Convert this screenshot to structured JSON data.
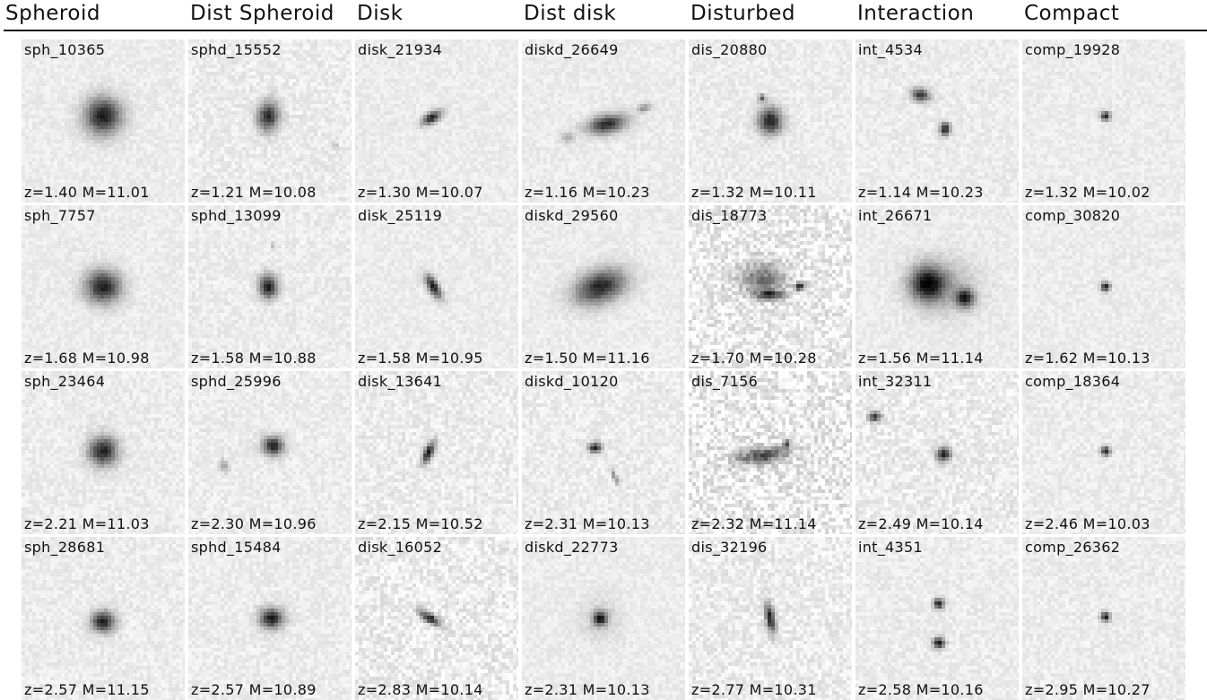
{
  "columns": [
    {
      "title": "Spheroid",
      "cells": [
        {
          "id": "sph_10365",
          "info": "z=1.40 M=11.01",
          "sources": [
            {
              "u": 0.5,
              "v": 0.47,
              "a": 0.28,
              "b": 0.28,
              "ang": 0,
              "peak": 0.92
            }
          ],
          "noise": 0.1
        },
        {
          "id": "sph_7757",
          "info": "z=1.68 M=10.98",
          "sources": [
            {
              "u": 0.5,
              "v": 0.5,
              "a": 0.27,
              "b": 0.25,
              "ang": 0,
              "peak": 0.9
            }
          ],
          "noise": 0.1
        },
        {
          "id": "sph_23464",
          "info": "z=2.21 M=11.03",
          "sources": [
            {
              "u": 0.5,
              "v": 0.49,
              "a": 0.22,
              "b": 0.22,
              "ang": 0,
              "peak": 0.9
            }
          ],
          "noise": 0.12
        },
        {
          "id": "sph_28681",
          "info": "z=2.57 M=11.15",
          "sources": [
            {
              "u": 0.5,
              "v": 0.52,
              "a": 0.18,
              "b": 0.16,
              "ang": -10,
              "peak": 0.92
            }
          ],
          "noise": 0.12
        }
      ]
    },
    {
      "title": "Dist Spheroid",
      "cells": [
        {
          "id": "sphd_15552",
          "info": "z=1.21 M=10.08",
          "sources": [
            {
              "u": 0.49,
              "v": 0.47,
              "a": 0.16,
              "b": 0.22,
              "ang": 10,
              "peak": 0.88
            },
            {
              "u": 0.9,
              "v": 0.65,
              "a": 0.05,
              "b": 0.04,
              "ang": 0,
              "peak": 0.2
            }
          ],
          "noise": 0.14
        },
        {
          "id": "sphd_13099",
          "info": "z=1.58 M=10.88",
          "sources": [
            {
              "u": 0.49,
              "v": 0.5,
              "a": 0.14,
              "b": 0.18,
              "ang": 0,
              "peak": 0.92
            },
            {
              "u": 0.52,
              "v": 0.25,
              "a": 0.04,
              "b": 0.05,
              "ang": 0,
              "peak": 0.25
            }
          ],
          "noise": 0.12
        },
        {
          "id": "sphd_25996",
          "info": "z=2.30 M=10.96",
          "sources": [
            {
              "u": 0.52,
              "v": 0.46,
              "a": 0.16,
              "b": 0.14,
              "ang": 0,
              "peak": 0.92
            },
            {
              "u": 0.22,
              "v": 0.58,
              "a": 0.06,
              "b": 0.1,
              "ang": -20,
              "peak": 0.3
            }
          ],
          "noise": 0.12
        },
        {
          "id": "sphd_15484",
          "info": "z=2.57 M=10.89",
          "sources": [
            {
              "u": 0.51,
              "v": 0.5,
              "a": 0.18,
              "b": 0.16,
              "ang": 0,
              "peak": 0.92
            }
          ],
          "noise": 0.12
        }
      ]
    },
    {
      "title": "Disk",
      "cells": [
        {
          "id": "disk_21934",
          "info": "z=1.30 M=10.07",
          "sources": [
            {
              "u": 0.47,
              "v": 0.48,
              "a": 0.16,
              "b": 0.08,
              "ang": -30,
              "peak": 0.92
            }
          ],
          "noise": 0.1
        },
        {
          "id": "disk_25119",
          "info": "z=1.58 M=10.95",
          "sources": [
            {
              "u": 0.48,
              "v": 0.5,
              "a": 0.2,
              "b": 0.08,
              "ang": 60,
              "peak": 0.92
            }
          ],
          "noise": 0.1
        },
        {
          "id": "disk_13641",
          "info": "z=2.15 M=10.52",
          "sources": [
            {
              "u": 0.45,
              "v": 0.5,
              "a": 0.18,
              "b": 0.07,
              "ang": -65,
              "peak": 0.92
            }
          ],
          "noise": 0.16
        },
        {
          "id": "disk_16052",
          "info": "z=2.83 M=10.14",
          "sources": [
            {
              "u": 0.46,
              "v": 0.5,
              "a": 0.18,
              "b": 0.07,
              "ang": 35,
              "peak": 0.9
            }
          ],
          "noise": 0.22
        }
      ]
    },
    {
      "title": "Dist disk",
      "cells": [
        {
          "id": "diskd_26649",
          "info": "z=1.16 M=10.23",
          "sources": [
            {
              "u": 0.52,
              "v": 0.52,
              "a": 0.3,
              "b": 0.14,
              "ang": -10,
              "peak": 0.85
            },
            {
              "u": 0.75,
              "v": 0.42,
              "a": 0.12,
              "b": 0.06,
              "ang": -15,
              "peak": 0.4
            },
            {
              "u": 0.28,
              "v": 0.6,
              "a": 0.1,
              "b": 0.08,
              "ang": 0,
              "peak": 0.3
            }
          ],
          "noise": 0.1
        },
        {
          "id": "diskd_29560",
          "info": "z=1.50 M=11.16",
          "sources": [
            {
              "u": 0.48,
              "v": 0.5,
              "a": 0.4,
              "b": 0.24,
              "ang": -20,
              "peak": 0.88
            }
          ],
          "noise": 0.1
        },
        {
          "id": "diskd_10120",
          "info": "z=2.31 M=10.13",
          "sources": [
            {
              "u": 0.45,
              "v": 0.47,
              "a": 0.1,
              "b": 0.08,
              "ang": 0,
              "peak": 0.92
            },
            {
              "u": 0.57,
              "v": 0.65,
              "a": 0.14,
              "b": 0.04,
              "ang": 65,
              "peak": 0.4
            }
          ],
          "noise": 0.14
        },
        {
          "id": "diskd_22773",
          "info": "z=2.31 M=10.13",
          "sources": [
            {
              "u": 0.48,
              "v": 0.5,
              "a": 0.1,
              "b": 0.1,
              "ang": 0,
              "peak": 0.92
            },
            {
              "u": 0.48,
              "v": 0.5,
              "a": 0.3,
              "b": 0.3,
              "ang": 0,
              "peak": 0.15
            }
          ],
          "noise": 0.1
        }
      ]
    },
    {
      "title": "Disturbed",
      "cells": [
        {
          "id": "dis_20880",
          "info": "z=1.32 M=10.11",
          "sources": [
            {
              "u": 0.5,
              "v": 0.5,
              "a": 0.18,
              "b": 0.2,
              "ang": 0,
              "peak": 0.92
            },
            {
              "u": 0.45,
              "v": 0.36,
              "a": 0.06,
              "b": 0.06,
              "ang": 0,
              "peak": 0.6
            }
          ],
          "noise": 0.12
        },
        {
          "id": "dis_18773",
          "info": "z=1.70 M=10.28",
          "sources": [
            {
              "u": 0.45,
              "v": 0.45,
              "a": 0.35,
              "b": 0.25,
              "ang": 0,
              "peak": 0.5
            },
            {
              "u": 0.68,
              "v": 0.5,
              "a": 0.08,
              "b": 0.06,
              "ang": 0,
              "peak": 0.85
            },
            {
              "u": 0.5,
              "v": 0.55,
              "a": 0.2,
              "b": 0.08,
              "ang": 0,
              "peak": 0.7
            }
          ],
          "noise": 0.3
        },
        {
          "id": "dis_7156",
          "info": "z=2.32 M=11.14",
          "sources": [
            {
              "u": 0.45,
              "v": 0.52,
              "a": 0.4,
              "b": 0.12,
              "ang": -8,
              "peak": 0.7
            },
            {
              "u": 0.6,
              "v": 0.45,
              "a": 0.06,
              "b": 0.06,
              "ang": 0,
              "peak": 0.7
            }
          ],
          "noise": 0.35
        },
        {
          "id": "dis_32196",
          "info": "z=2.77 M=10.31",
          "sources": [
            {
              "u": 0.5,
              "v": 0.5,
              "a": 0.24,
              "b": 0.07,
              "ang": 80,
              "peak": 0.9
            }
          ],
          "noise": 0.18
        }
      ]
    },
    {
      "title": "Interaction",
      "cells": [
        {
          "id": "int_4534",
          "info": "z=1.14 M=10.23",
          "sources": [
            {
              "u": 0.4,
              "v": 0.34,
              "a": 0.14,
              "b": 0.1,
              "ang": 15,
              "peak": 0.8
            },
            {
              "u": 0.55,
              "v": 0.55,
              "a": 0.08,
              "b": 0.1,
              "ang": 0,
              "peak": 0.92
            }
          ],
          "noise": 0.12
        },
        {
          "id": "int_26671",
          "info": "z=1.56 M=11.14",
          "sources": [
            {
              "u": 0.44,
              "v": 0.48,
              "a": 0.26,
              "b": 0.26,
              "ang": 0,
              "peak": 0.92
            },
            {
              "u": 0.67,
              "v": 0.57,
              "a": 0.14,
              "b": 0.14,
              "ang": 0,
              "peak": 0.85
            },
            {
              "u": 0.55,
              "v": 0.5,
              "a": 0.48,
              "b": 0.42,
              "ang": 0,
              "peak": 0.25
            }
          ],
          "noise": 0.1
        },
        {
          "id": "int_32311",
          "info": "z=2.49 M=10.14",
          "sources": [
            {
              "u": 0.12,
              "v": 0.28,
              "a": 0.1,
              "b": 0.08,
              "ang": 0,
              "peak": 0.75
            },
            {
              "u": 0.54,
              "v": 0.51,
              "a": 0.11,
              "b": 0.11,
              "ang": 0,
              "peak": 0.92
            }
          ],
          "noise": 0.18
        },
        {
          "id": "int_4351",
          "info": "z=2.58 M=10.16",
          "sources": [
            {
              "u": 0.51,
              "v": 0.41,
              "a": 0.08,
              "b": 0.08,
              "ang": 0,
              "peak": 0.92
            },
            {
              "u": 0.51,
              "v": 0.65,
              "a": 0.09,
              "b": 0.09,
              "ang": 0,
              "peak": 0.92
            }
          ],
          "noise": 0.12
        }
      ]
    },
    {
      "title": "Compact",
      "cells": [
        {
          "id": "comp_19928",
          "info": "z=1.32 M=10.02",
          "sources": [
            {
              "u": 0.51,
              "v": 0.47,
              "a": 0.07,
              "b": 0.07,
              "ang": 0,
              "peak": 0.95
            }
          ],
          "noise": 0.1
        },
        {
          "id": "comp_30820",
          "info": "z=1.62 M=10.13",
          "sources": [
            {
              "u": 0.51,
              "v": 0.5,
              "a": 0.07,
              "b": 0.07,
              "ang": 0,
              "peak": 0.95
            }
          ],
          "noise": 0.1
        },
        {
          "id": "comp_18364",
          "info": "z=2.46 M=10.03",
          "sources": [
            {
              "u": 0.51,
              "v": 0.49,
              "a": 0.07,
              "b": 0.07,
              "ang": 0,
              "peak": 0.95
            }
          ],
          "noise": 0.12
        },
        {
          "id": "comp_26362",
          "info": "z=2.95 M=10.27",
          "sources": [
            {
              "u": 0.51,
              "v": 0.49,
              "a": 0.07,
              "b": 0.07,
              "ang": 0,
              "peak": 0.95
            }
          ],
          "noise": 0.12
        }
      ]
    }
  ]
}
